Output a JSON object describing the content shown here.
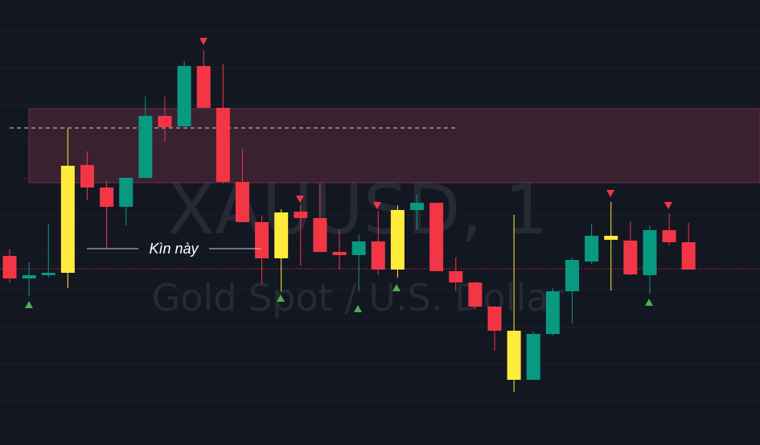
{
  "chart_data": {
    "type": "candlestick",
    "watermark_title": "XAUUSD, 1",
    "watermark_subtitle": "Gold Spot / U.S. Dollar",
    "annotation": "Kìn này",
    "ylim": [
      0,
      553
    ],
    "open": [
      235,
      207,
      211,
      214,
      348,
      320,
      296,
      332,
      409,
      396,
      471,
      419,
      327,
      277,
      232,
      290,
      282,
      240,
      236,
      253,
      218,
      292,
      301,
      216,
      202,
      172,
      142,
      81,
      138,
      191,
      228,
      260,
      254,
      211,
      267,
      252
    ],
    "high": [
      243,
      227,
      275,
      393,
      365,
      328,
      332,
      433,
      433,
      477,
      491,
      473,
      368,
      285,
      293,
      298,
      325,
      268,
      261,
      291,
      298,
      311,
      301,
      233,
      203,
      173,
      286,
      141,
      195,
      233,
      275,
      302,
      278,
      273,
      288,
      276
    ],
    "low": [
      201,
      185,
      208,
      195,
      305,
      245,
      273,
      331,
      377,
      396,
      419,
      325,
      276,
      200,
      191,
      223,
      240,
      218,
      191,
      211,
      208,
      268,
      216,
      191,
      169,
      117,
      66,
      81,
      136,
      151,
      225,
      192,
      211,
      188,
      248,
      218
    ],
    "close": [
      207,
      211,
      214,
      347,
      320,
      296,
      332,
      409,
      395,
      471,
      419,
      327,
      277,
      232,
      289,
      282,
      240,
      236,
      253,
      218,
      292,
      301,
      216,
      202,
      172,
      142,
      81,
      138,
      191,
      230,
      260,
      255,
      212,
      267,
      252,
      218
    ],
    "colors": [
      "#f23645",
      "#089981",
      "#089981",
      "#ffeb3b",
      "#f23645",
      "#f23645",
      "#089981",
      "#089981",
      "#f23645",
      "#089981",
      "#f23645",
      "#f23645",
      "#f23645",
      "#f23645",
      "#ffeb3b",
      "#f23645",
      "#f23645",
      "#f23645",
      "#089981",
      "#f23645",
      "#ffeb3b",
      "#089981",
      "#f23645",
      "#f23645",
      "#f23645",
      "#f23645",
      "#ffeb3b",
      "#089981",
      "#089981",
      "#089981",
      "#089981",
      "#ffeb3b",
      "#f23645",
      "#089981",
      "#f23645",
      "#f23645"
    ]
  }
}
